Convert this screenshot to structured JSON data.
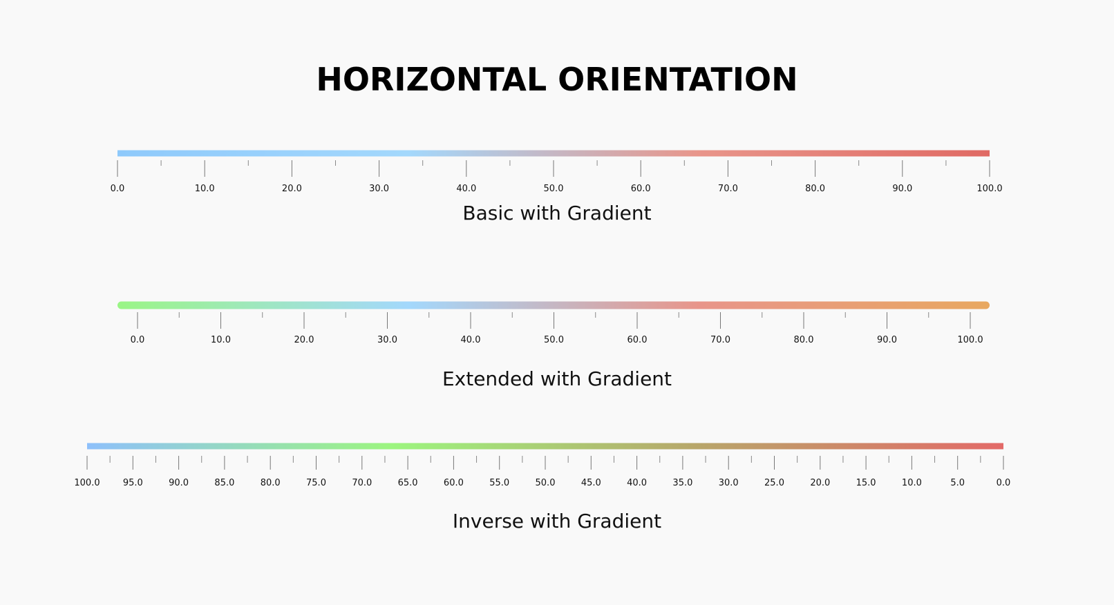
{
  "title": "HORIZONTAL ORIENTATION",
  "rulers": [
    {
      "caption": "Basic with Gradient",
      "min": 0,
      "max": 100,
      "major_step": 10,
      "minor_step": 5,
      "inverse": false,
      "rounded": false,
      "gradient": [
        "#8ec9fb",
        "#a3d8fc",
        "#e8958a",
        "#e06a64"
      ],
      "labels": [
        "0.0",
        "10.0",
        "20.0",
        "30.0",
        "40.0",
        "50.0",
        "60.0",
        "70.0",
        "80.0",
        "90.0",
        "100.0"
      ]
    },
    {
      "caption": "Extended with Gradient",
      "min": 0,
      "max": 100,
      "major_step": 10,
      "minor_step": 5,
      "inverse": false,
      "rounded": true,
      "gradient": [
        "#9af585",
        "#a3d8fc",
        "#e8958a",
        "#e8a860"
      ],
      "labels": [
        "0.0",
        "10.0",
        "20.0",
        "30.0",
        "40.0",
        "50.0",
        "60.0",
        "70.0",
        "80.0",
        "90.0",
        "100.0"
      ]
    },
    {
      "caption": "Inverse with Gradient",
      "min": 0,
      "max": 100,
      "major_step": 5,
      "minor_step": 2.5,
      "inverse": true,
      "rounded": false,
      "gradient": [
        "#8ec0fb",
        "#9cf57f",
        "#b8a66a",
        "#e36a68"
      ],
      "labels": [
        "100.0",
        "95.0",
        "90.0",
        "85.0",
        "80.0",
        "75.0",
        "70.0",
        "65.0",
        "60.0",
        "55.0",
        "50.0",
        "45.0",
        "40.0",
        "35.0",
        "30.0",
        "25.0",
        "20.0",
        "15.0",
        "10.0",
        "5.0",
        "0.0"
      ]
    }
  ]
}
